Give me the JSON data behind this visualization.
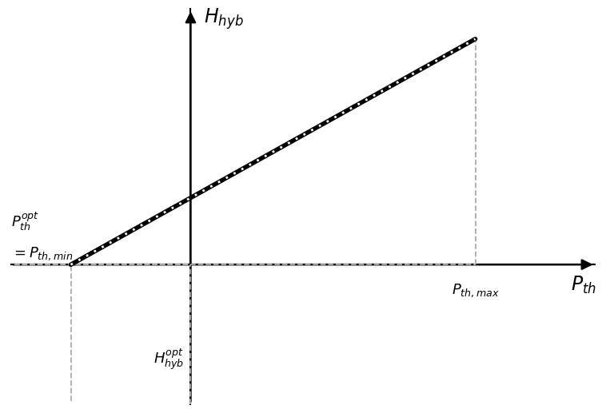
{
  "x_min": -2.5,
  "x_max": 5.5,
  "y_min": -2.5,
  "y_max": 4.5,
  "p_th_min": -1.6,
  "p_th_max": 3.8,
  "line_slope": 0.72,
  "line_intercept": 1.15,
  "background_color": "#ffffff",
  "dash_color": "#aaaaaa",
  "axis_color": "#000000"
}
